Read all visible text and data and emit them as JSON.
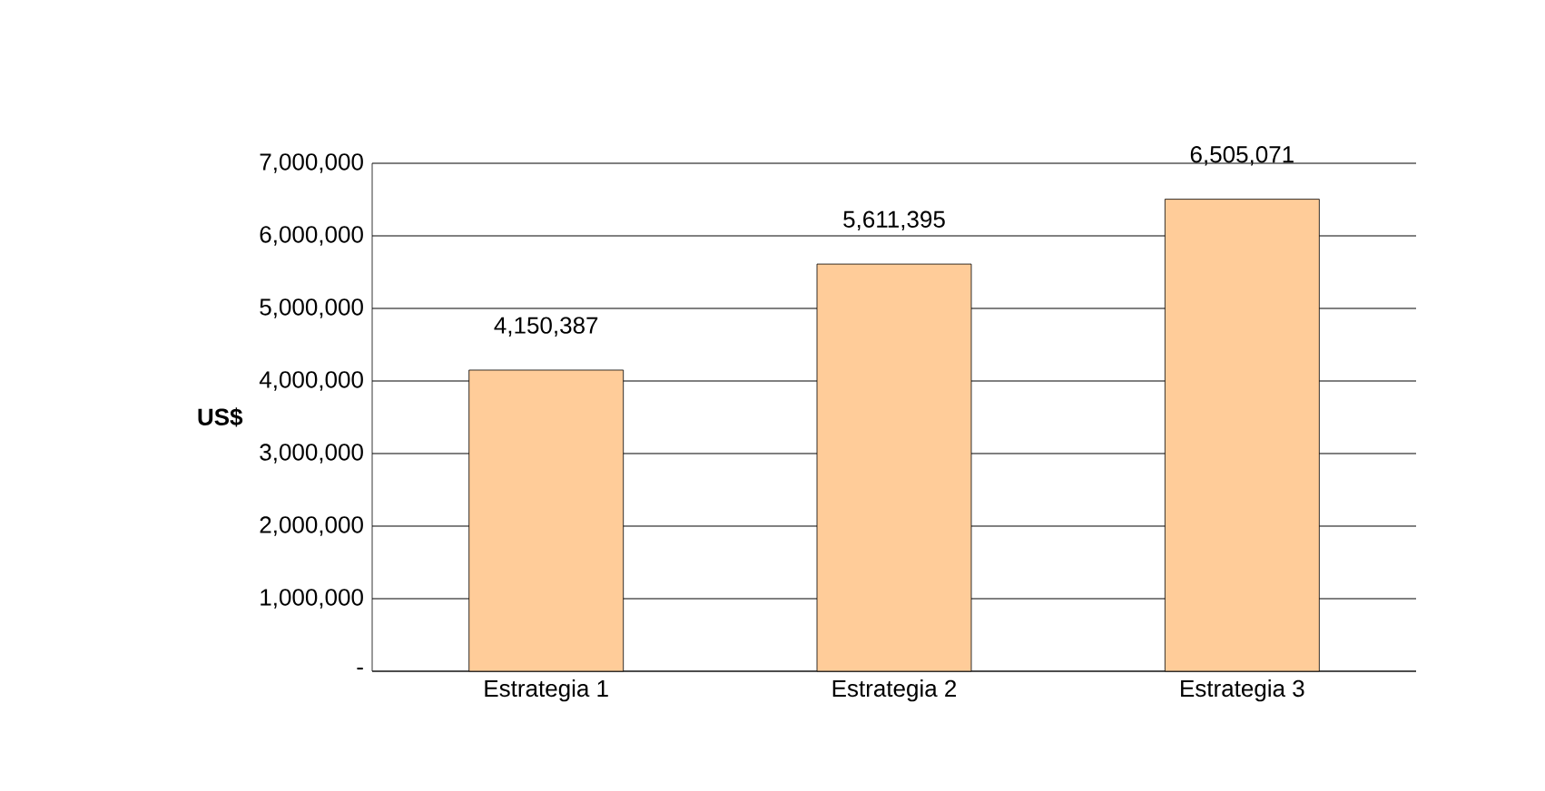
{
  "chart_data": {
    "type": "bar",
    "ylabel": "US$",
    "categories": [
      "Estrategia 1",
      "Estrategia 2",
      "Estrategia 3"
    ],
    "values": [
      4150387,
      5611395,
      6505071
    ],
    "value_labels": [
      "4,150,387",
      "5,611,395",
      "6,505,071"
    ],
    "color": "#ffcc99",
    "ylim": [
      0,
      7000000
    ],
    "yticks": [
      {
        "value": 0,
        "label": "-"
      },
      {
        "value": 1000000,
        "label": "1,000,000"
      },
      {
        "value": 2000000,
        "label": "2,000,000"
      },
      {
        "value": 3000000,
        "label": "3,000,000"
      },
      {
        "value": 4000000,
        "label": "4,000,000"
      },
      {
        "value": 5000000,
        "label": "5,000,000"
      },
      {
        "value": 6000000,
        "label": "6,000,000"
      },
      {
        "value": 7000000,
        "label": "7,000,000"
      }
    ],
    "grid": "y"
  }
}
